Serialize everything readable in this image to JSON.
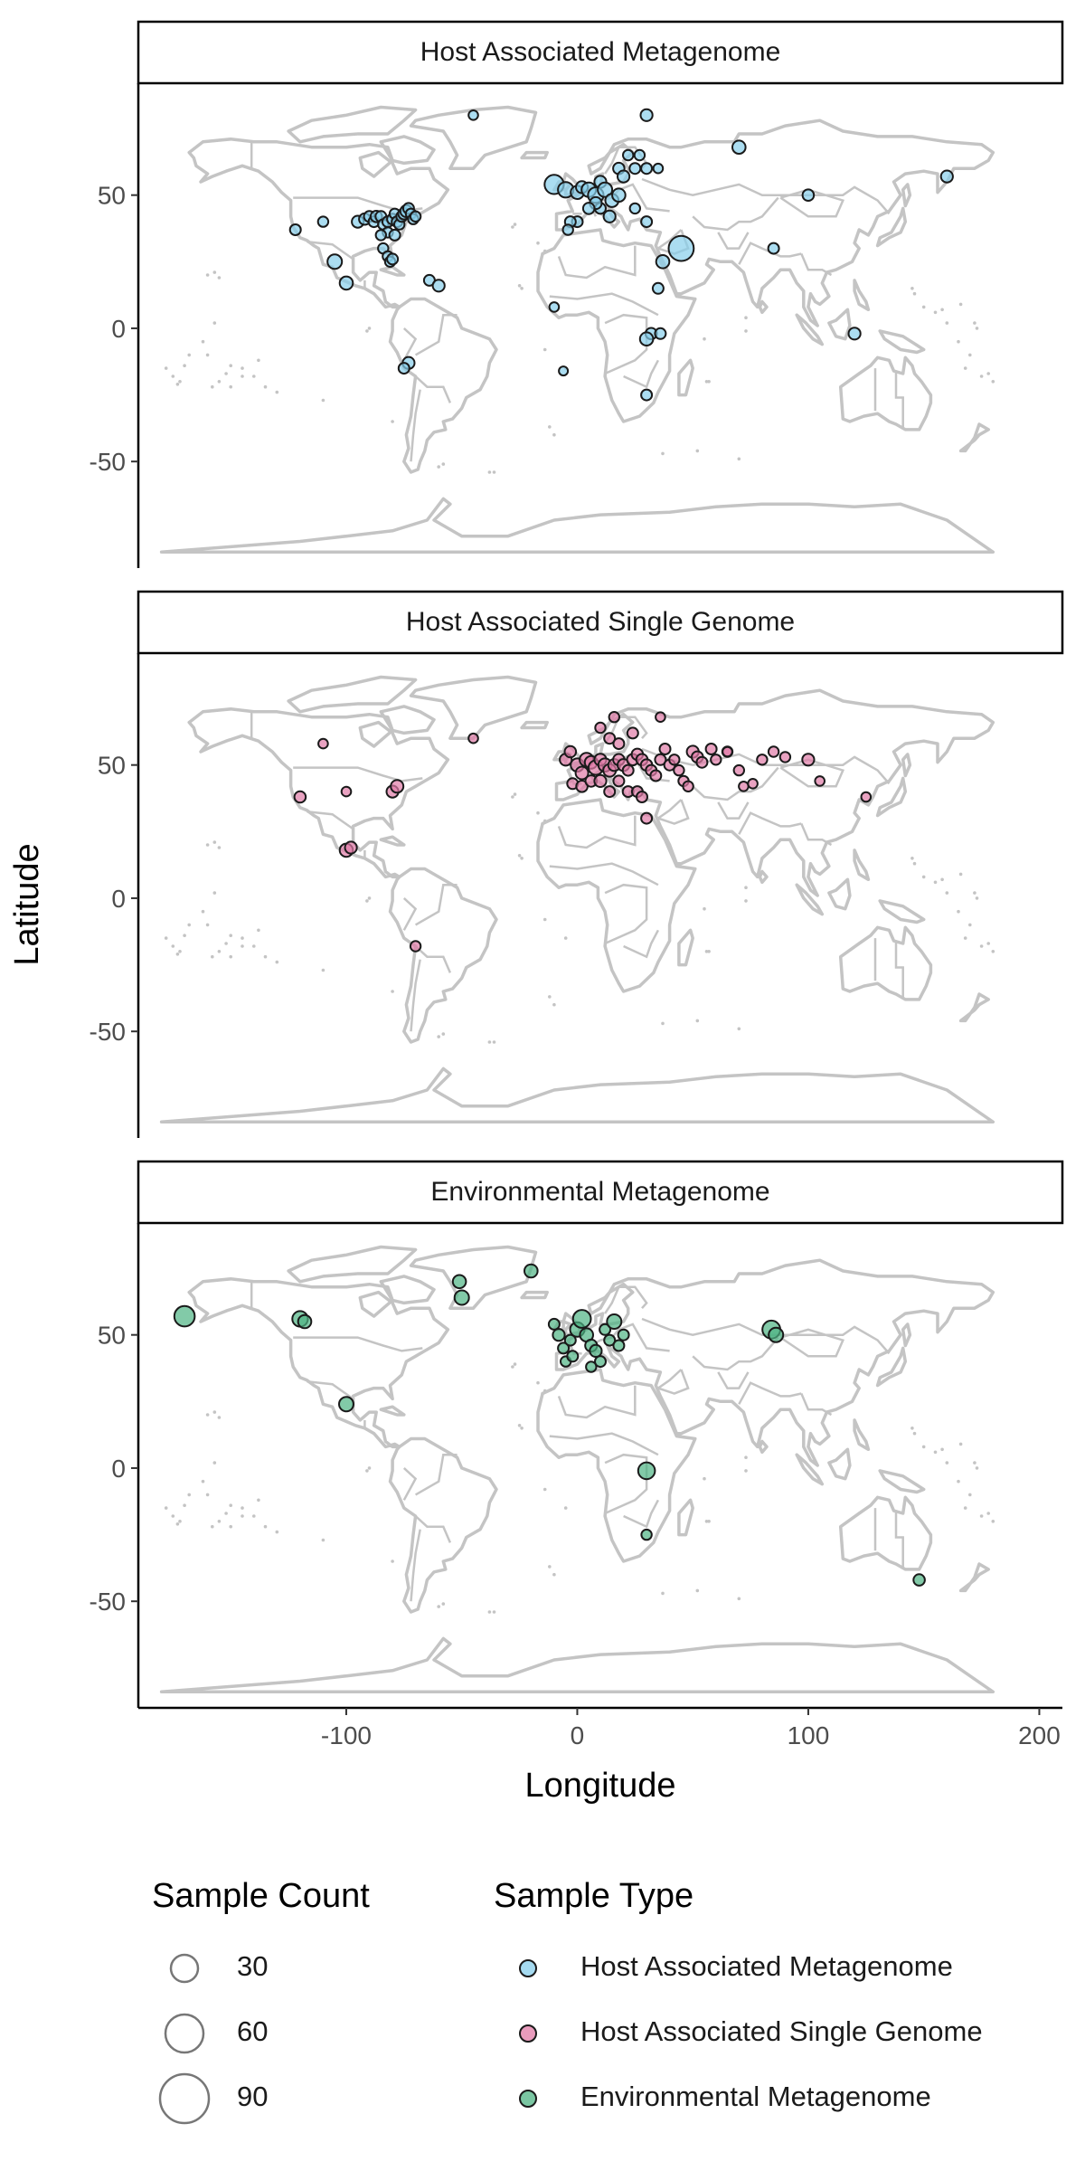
{
  "chart_data": {
    "type": "scatter",
    "subtype": "bubble-map-facets",
    "xlabel": "Longitude",
    "ylabel": "Latitude",
    "xlim": [
      -190,
      210
    ],
    "ylim": [
      -90,
      92
    ],
    "xticks": [
      -100,
      0,
      100,
      200
    ],
    "yticks": [
      50,
      0,
      -50
    ],
    "grid": false,
    "legend_position": "bottom",
    "panels": [
      {
        "title": "Host Associated Metagenome",
        "color": "#87CEEB",
        "points": [
          [
            -122,
            37,
            6
          ],
          [
            -110,
            40,
            5
          ],
          [
            -105,
            25,
            12
          ],
          [
            -100,
            17,
            10
          ],
          [
            -95,
            40,
            8
          ],
          [
            -92,
            41,
            7
          ],
          [
            -90,
            42,
            6
          ],
          [
            -88,
            40,
            6
          ],
          [
            -87,
            42,
            7
          ],
          [
            -85,
            42,
            6
          ],
          [
            -84,
            39,
            5
          ],
          [
            -82,
            40,
            6
          ],
          [
            -80,
            41,
            6
          ],
          [
            -79,
            43,
            5
          ],
          [
            -78,
            40,
            6
          ],
          [
            -77,
            39,
            5
          ],
          [
            -76,
            42,
            6
          ],
          [
            -75,
            43,
            7
          ],
          [
            -74,
            44,
            8
          ],
          [
            -73,
            45,
            6
          ],
          [
            -72,
            43,
            5
          ],
          [
            -71,
            41,
            5
          ],
          [
            -70,
            42,
            5
          ],
          [
            -84,
            30,
            5
          ],
          [
            -82,
            27,
            5
          ],
          [
            -81,
            25,
            5
          ],
          [
            -80,
            26,
            6
          ],
          [
            -82,
            36,
            5
          ],
          [
            -85,
            35,
            5
          ],
          [
            -79,
            35,
            6
          ],
          [
            -64,
            18,
            6
          ],
          [
            -60,
            16,
            8
          ],
          [
            -73,
            -13,
            8
          ],
          [
            -75,
            -15,
            6
          ],
          [
            -45,
            80,
            4
          ],
          [
            -10,
            8,
            4
          ],
          [
            -6,
            -16,
            3
          ],
          [
            -10,
            54,
            20
          ],
          [
            -5,
            52,
            14
          ],
          [
            0,
            51,
            10
          ],
          [
            2,
            53,
            8
          ],
          [
            5,
            52,
            12
          ],
          [
            8,
            50,
            14
          ],
          [
            10,
            55,
            8
          ],
          [
            12,
            52,
            12
          ],
          [
            15,
            48,
            10
          ],
          [
            18,
            60,
            7
          ],
          [
            20,
            57,
            8
          ],
          [
            18,
            50,
            10
          ],
          [
            14,
            42,
            8
          ],
          [
            10,
            45,
            6
          ],
          [
            8,
            47,
            8
          ],
          [
            5,
            45,
            7
          ],
          [
            0,
            40,
            6
          ],
          [
            -3,
            40,
            6
          ],
          [
            -4,
            37,
            5
          ],
          [
            25,
            60,
            6
          ],
          [
            22,
            65,
            5
          ],
          [
            27,
            65,
            5
          ],
          [
            30,
            60,
            6
          ],
          [
            30,
            40,
            6
          ],
          [
            25,
            45,
            5
          ],
          [
            35,
            60,
            4
          ],
          [
            30,
            80,
            8
          ],
          [
            45,
            30,
            30
          ],
          [
            37,
            25,
            10
          ],
          [
            35,
            15,
            6
          ],
          [
            32,
            -2,
            7
          ],
          [
            30,
            -4,
            10
          ],
          [
            36,
            -2,
            6
          ],
          [
            30,
            -25,
            6
          ],
          [
            70,
            68,
            10
          ],
          [
            85,
            30,
            6
          ],
          [
            100,
            50,
            7
          ],
          [
            120,
            -2,
            8
          ],
          [
            160,
            57,
            8
          ]
        ]
      },
      {
        "title": "Host Associated Single Genome",
        "color": "#E07AA6",
        "points": [
          [
            -120,
            38,
            7
          ],
          [
            -110,
            58,
            4
          ],
          [
            -100,
            40,
            4
          ],
          [
            -80,
            40,
            8
          ],
          [
            -78,
            42,
            9
          ],
          [
            -70,
            -18,
            5
          ],
          [
            -100,
            18,
            10
          ],
          [
            -98,
            19,
            8
          ],
          [
            -45,
            60,
            4
          ],
          [
            -5,
            52,
            8
          ],
          [
            -3,
            55,
            7
          ],
          [
            0,
            50,
            10
          ],
          [
            2,
            47,
            9
          ],
          [
            4,
            52,
            11
          ],
          [
            6,
            51,
            9
          ],
          [
            8,
            49,
            12
          ],
          [
            10,
            52,
            8
          ],
          [
            12,
            50,
            10
          ],
          [
            14,
            48,
            9
          ],
          [
            16,
            50,
            8
          ],
          [
            18,
            52,
            7
          ],
          [
            20,
            50,
            8
          ],
          [
            22,
            48,
            6
          ],
          [
            24,
            52,
            7
          ],
          [
            26,
            54,
            7
          ],
          [
            28,
            52,
            7
          ],
          [
            30,
            50,
            7
          ],
          [
            32,
            48,
            6
          ],
          [
            34,
            46,
            6
          ],
          [
            36,
            52,
            6
          ],
          [
            38,
            56,
            6
          ],
          [
            40,
            50,
            6
          ],
          [
            42,
            52,
            5
          ],
          [
            44,
            48,
            5
          ],
          [
            46,
            44,
            5
          ],
          [
            48,
            42,
            5
          ],
          [
            50,
            55,
            8
          ],
          [
            52,
            53,
            7
          ],
          [
            54,
            51,
            6
          ],
          [
            58,
            56,
            6
          ],
          [
            60,
            52,
            5
          ],
          [
            65,
            55,
            5
          ],
          [
            70,
            48,
            5
          ],
          [
            72,
            42,
            4
          ],
          [
            76,
            43,
            4
          ],
          [
            80,
            52,
            5
          ],
          [
            85,
            55,
            5
          ],
          [
            90,
            53,
            5
          ],
          [
            100,
            52,
            8
          ],
          [
            105,
            44,
            4
          ],
          [
            125,
            38,
            4
          ],
          [
            -2,
            43,
            6
          ],
          [
            2,
            42,
            7
          ],
          [
            6,
            44,
            7
          ],
          [
            10,
            44,
            8
          ],
          [
            14,
            40,
            6
          ],
          [
            18,
            44,
            6
          ],
          [
            22,
            40,
            6
          ],
          [
            26,
            40,
            6
          ],
          [
            30,
            30,
            6
          ],
          [
            28,
            38,
            6
          ],
          [
            14,
            60,
            6
          ],
          [
            18,
            58,
            6
          ],
          [
            24,
            62,
            6
          ],
          [
            10,
            64,
            5
          ],
          [
            16,
            68,
            5
          ],
          [
            36,
            68,
            4
          ],
          [
            65,
            55,
            4
          ]
        ]
      },
      {
        "title": "Environmental Metagenome",
        "color": "#4DB383",
        "points": [
          [
            -170,
            57,
            22
          ],
          [
            -120,
            56,
            14
          ],
          [
            -118,
            55,
            10
          ],
          [
            -100,
            24,
            12
          ],
          [
            -51,
            70,
            10
          ],
          [
            -50,
            64,
            12
          ],
          [
            -20,
            74,
            10
          ],
          [
            -10,
            54,
            6
          ],
          [
            -8,
            50,
            8
          ],
          [
            -6,
            45,
            6
          ],
          [
            -5,
            40,
            5
          ],
          [
            -3,
            48,
            6
          ],
          [
            0,
            52,
            12
          ],
          [
            2,
            56,
            18
          ],
          [
            4,
            50,
            10
          ],
          [
            6,
            46,
            8
          ],
          [
            8,
            44,
            8
          ],
          [
            10,
            40,
            6
          ],
          [
            12,
            52,
            6
          ],
          [
            14,
            48,
            6
          ],
          [
            16,
            55,
            12
          ],
          [
            18,
            46,
            6
          ],
          [
            20,
            50,
            6
          ],
          [
            -2,
            42,
            6
          ],
          [
            6,
            38,
            5
          ],
          [
            30,
            -1,
            16
          ],
          [
            30,
            -25,
            5
          ],
          [
            84,
            52,
            18
          ],
          [
            86,
            50,
            12
          ],
          [
            148,
            -42,
            7
          ]
        ]
      }
    ],
    "size_legend": {
      "title": "Sample Count",
      "items": [
        {
          "label": "30",
          "value": 30
        },
        {
          "label": "60",
          "value": 60
        },
        {
          "label": "90",
          "value": 90
        }
      ]
    },
    "color_legend": {
      "title": "Sample Type",
      "items": [
        {
          "label": "Host Associated Metagenome",
          "color": "#87CEEB"
        },
        {
          "label": "Host Associated Single Genome",
          "color": "#E07AA6"
        },
        {
          "label": "Environmental Metagenome",
          "color": "#4DB383"
        }
      ]
    }
  }
}
